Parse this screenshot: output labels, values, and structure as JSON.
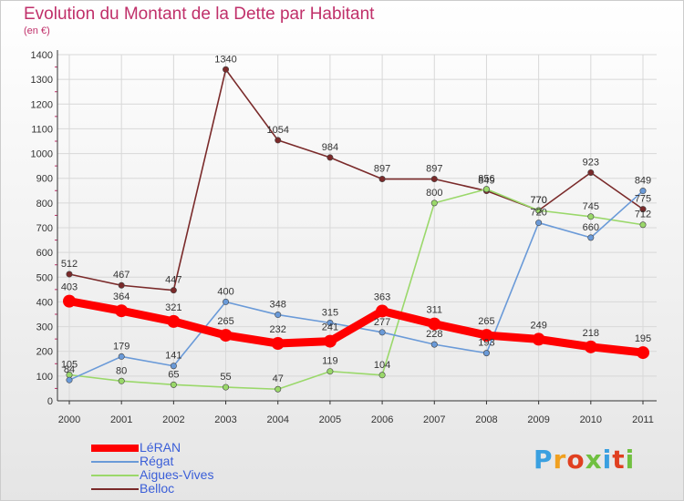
{
  "header": {
    "title": "Evolution du Montant de la Dette par Habitant",
    "unit": "(en €)"
  },
  "logo": {
    "text": "Proxiti",
    "colors": [
      "#3aa0e0",
      "#f0a020",
      "#e04020",
      "#70c040",
      "#3aa0e0",
      "#e04020",
      "#70c040"
    ]
  },
  "chart_data": {
    "type": "line",
    "title": "Evolution du Montant de la Dette par Habitant",
    "subtitle": "(en €)",
    "xlabel": "",
    "ylabel": "",
    "x": [
      "2000",
      "2001",
      "2002",
      "2003",
      "2004",
      "2005",
      "2006",
      "2007",
      "2008",
      "2009",
      "2010",
      "2011"
    ],
    "ylim": [
      0,
      1400
    ],
    "yticks": [
      0,
      100,
      200,
      300,
      400,
      500,
      600,
      700,
      800,
      900,
      1000,
      1100,
      1200,
      1300,
      1400
    ],
    "grid": true,
    "legend_position": "bottom-left",
    "series": [
      {
        "name": "Belloc",
        "color": "#7a2a2a",
        "emphasis": false,
        "values": [
          512,
          467,
          447,
          1340,
          1054,
          984,
          897,
          897,
          849,
          770,
          923,
          775
        ]
      },
      {
        "name": "Aigues-Vives",
        "color": "#9ad86a",
        "emphasis": false,
        "values": [
          105,
          80,
          65,
          55,
          47,
          119,
          104,
          800,
          856,
          770,
          745,
          712
        ]
      },
      {
        "name": "Régat",
        "color": "#6a9ad8",
        "emphasis": false,
        "values": [
          84,
          179,
          141,
          400,
          348,
          315,
          277,
          228,
          193,
          720,
          660,
          849
        ]
      },
      {
        "name": "LéRAN",
        "color": "#ff0000",
        "emphasis": true,
        "values": [
          403,
          364,
          321,
          265,
          232,
          241,
          363,
          311,
          265,
          249,
          218,
          195
        ]
      }
    ],
    "legend_order": [
      "LéRAN",
      "Régat",
      "Aigues-Vives",
      "Belloc"
    ]
  }
}
